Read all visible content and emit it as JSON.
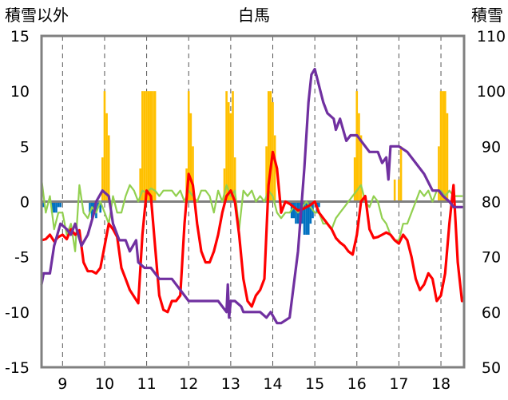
{
  "chart_data": {
    "type": "line",
    "title": "白馬",
    "ylabel_left": "積雪以外",
    "ylabel_right": "積雪",
    "x_ticks": [
      "9",
      "10",
      "11",
      "12",
      "13",
      "14",
      "15",
      "16",
      "17",
      "18"
    ],
    "xlim": [
      8.5,
      18.55
    ],
    "ylim_left": [
      -15,
      15
    ],
    "ylim_right": [
      50,
      110
    ],
    "y_ticks_left": [
      "15",
      "10",
      "5",
      "0",
      "-5",
      "-10",
      "-15"
    ],
    "y_ticks_right": [
      "110",
      "100",
      "90",
      "80",
      "70",
      "60",
      "50"
    ],
    "grid": "dashed vertical",
    "colors": {
      "temperature": "#ff0000",
      "snow_depth": "#7030a0",
      "wind": "#92d050",
      "precip_positive": "#ffc000",
      "precip_negative": "#0070c0",
      "zero_line": "#7f7f7f",
      "grid": "#555555",
      "frame": "#808080"
    },
    "series": [
      {
        "name": "temperature",
        "axis": "left",
        "x": [
          8.5,
          8.6,
          8.7,
          8.8,
          8.9,
          9.0,
          9.1,
          9.2,
          9.3,
          9.4,
          9.5,
          9.6,
          9.7,
          9.8,
          9.9,
          10.0,
          10.1,
          10.2,
          10.3,
          10.4,
          10.5,
          10.6,
          10.7,
          10.8,
          10.9,
          11.0,
          11.1,
          11.2,
          11.3,
          11.4,
          11.5,
          11.6,
          11.7,
          11.8,
          11.9,
          12.0,
          12.1,
          12.2,
          12.3,
          12.4,
          12.5,
          12.6,
          12.7,
          12.8,
          12.9,
          13.0,
          13.1,
          13.2,
          13.3,
          13.4,
          13.5,
          13.6,
          13.7,
          13.8,
          13.9,
          14.0,
          14.1,
          14.2,
          14.3,
          14.4,
          14.5,
          14.6,
          14.7,
          14.8,
          14.9,
          15.0,
          15.1,
          15.2,
          15.3,
          15.4,
          15.5,
          15.6,
          15.7,
          15.8,
          15.9,
          16.0,
          16.1,
          16.2,
          16.3,
          16.4,
          16.5,
          16.6,
          16.7,
          16.8,
          16.9,
          17.0,
          17.1,
          17.2,
          17.3,
          17.4,
          17.5,
          17.6,
          17.7,
          17.8,
          17.9,
          18.0,
          18.1,
          18.2,
          18.3,
          18.4,
          18.5
        ],
        "values": [
          -3.5,
          -3.4,
          -3.0,
          -3.6,
          -3.2,
          -3.0,
          -3.4,
          -2.5,
          -3.0,
          -2.6,
          -5.5,
          -6.3,
          -6.3,
          -6.5,
          -6.0,
          -4.0,
          -2.0,
          -2.5,
          -3.2,
          -6.0,
          -7.0,
          -8.0,
          -8.6,
          -9.2,
          -3.0,
          1.0,
          0.5,
          -4.0,
          -8.5,
          -9.8,
          -10.0,
          -9.0,
          -9.0,
          -8.5,
          -2.0,
          2.5,
          1.5,
          -2.0,
          -4.5,
          -5.5,
          -5.5,
          -4.5,
          -3.0,
          -1.0,
          0.5,
          1.0,
          0.0,
          -3.0,
          -7.0,
          -9.0,
          -9.5,
          -8.5,
          -8.0,
          -7.0,
          1.5,
          4.5,
          3.0,
          -1.0,
          0.0,
          -0.2,
          -0.5,
          -0.8,
          -0.7,
          -0.5,
          -0.3,
          0.0,
          -1.0,
          -1.5,
          -2.0,
          -2.5,
          -3.3,
          -3.7,
          -4.0,
          -4.5,
          -4.8,
          -3.0,
          0.0,
          0.5,
          -2.5,
          -3.3,
          -3.2,
          -3.0,
          -2.8,
          -3.0,
          -3.5,
          -3.8,
          -3.0,
          -3.5,
          -5.0,
          -7.0,
          -8.0,
          -7.5,
          -6.5,
          -7.0,
          -9.0,
          -8.5,
          -6.5,
          -2.0,
          1.5,
          -5.5,
          -9.0
        ]
      },
      {
        "name": "snow_depth",
        "axis": "right",
        "x": [
          8.5,
          8.55,
          8.7,
          8.8,
          8.95,
          9.1,
          9.2,
          9.3,
          9.45,
          9.6,
          9.75,
          9.8,
          9.95,
          10.1,
          10.2,
          10.35,
          10.5,
          10.6,
          10.75,
          10.8,
          10.95,
          11.1,
          11.3,
          11.6,
          11.9,
          12.0,
          12.1,
          12.3,
          12.55,
          12.7,
          12.9,
          12.93,
          12.96,
          13.0,
          13.1,
          13.25,
          13.3,
          13.5,
          13.7,
          13.85,
          13.95,
          14.1,
          14.2,
          14.4,
          14.6,
          14.75,
          14.85,
          14.92,
          15.0,
          15.1,
          15.2,
          15.3,
          15.45,
          15.5,
          15.6,
          15.75,
          15.85,
          16.0,
          16.2,
          16.3,
          16.5,
          16.6,
          16.7,
          16.75,
          16.8,
          17.0,
          17.2,
          17.4,
          17.6,
          17.8,
          17.95,
          18.05,
          18.2,
          18.3,
          18.5
        ],
        "values": [
          65,
          67,
          67,
          72,
          76,
          75,
          74,
          76,
          72,
          74,
          78,
          80,
          82,
          81,
          76,
          73,
          73,
          71,
          73,
          69,
          68,
          68,
          66,
          66,
          63,
          62,
          62,
          62,
          62,
          62,
          60,
          65,
          59,
          62,
          62,
          61,
          60,
          60,
          60,
          59,
          60,
          58,
          58,
          59,
          71,
          86,
          98,
          103,
          104,
          101,
          98,
          96,
          95,
          93,
          95,
          91,
          92,
          92,
          90,
          89,
          89,
          87,
          88,
          84,
          90,
          90,
          89,
          87,
          85,
          82,
          82,
          81,
          80,
          79,
          79
        ]
      },
      {
        "name": "wind",
        "axis": "left",
        "x": [
          8.5,
          8.6,
          8.7,
          8.8,
          8.9,
          9.0,
          9.1,
          9.2,
          9.3,
          9.4,
          9.5,
          9.6,
          9.7,
          9.8,
          9.9,
          10.0,
          10.1,
          10.2,
          10.3,
          10.4,
          10.5,
          10.6,
          10.7,
          10.8,
          10.9,
          11.0,
          11.1,
          11.2,
          11.3,
          11.4,
          11.5,
          11.6,
          11.7,
          11.8,
          11.9,
          12.0,
          12.1,
          12.2,
          12.3,
          12.4,
          12.5,
          12.6,
          12.7,
          12.8,
          12.9,
          13.0,
          13.1,
          13.2,
          13.3,
          13.4,
          13.5,
          13.6,
          13.7,
          13.8,
          13.9,
          14.0,
          14.1,
          14.2,
          14.3,
          14.4,
          14.5,
          14.6,
          14.7,
          14.8,
          14.9,
          15.0,
          15.1,
          15.2,
          15.3,
          15.4,
          15.5,
          15.6,
          15.7,
          15.8,
          15.9,
          16.0,
          16.1,
          16.2,
          16.3,
          16.4,
          16.5,
          16.6,
          16.7,
          16.8,
          16.9,
          17.0,
          17.1,
          17.2,
          17.3,
          17.4,
          17.5,
          17.6,
          17.7,
          17.8,
          17.9,
          18.0,
          18.1,
          18.2,
          18.3,
          18.4,
          18.5
        ],
        "values": [
          2.0,
          -1.0,
          0.5,
          -2.5,
          -1.0,
          -1.0,
          -3.0,
          -2.0,
          -4.5,
          1.5,
          -1.0,
          -1.5,
          -0.5,
          -1.0,
          0.0,
          -1.0,
          -2.0,
          0.5,
          -1.0,
          -1.0,
          0.5,
          1.5,
          1.0,
          0.0,
          1.0,
          0.8,
          1.2,
          1.0,
          0.5,
          1.0,
          1.0,
          1.0,
          0.5,
          1.0,
          0.0,
          1.0,
          0.5,
          0.0,
          1.0,
          1.0,
          0.5,
          -1.0,
          1.0,
          0.0,
          1.5,
          0.5,
          1.0,
          -2.5,
          1.0,
          0.5,
          1.0,
          0.0,
          0.5,
          0.0,
          1.0,
          0.5,
          -1.0,
          -1.5,
          -1.0,
          -1.0,
          -0.5,
          -1.0,
          -0.5,
          0.0,
          -0.5,
          -1.0,
          -1.0,
          -2.0,
          -2.0,
          -2.5,
          -1.5,
          -1.0,
          -0.5,
          0.0,
          0.5,
          1.0,
          1.5,
          0.0,
          -0.5,
          0.5,
          0.0,
          -1.5,
          -2.0,
          -3.0,
          -3.5,
          -3.5,
          -2.0,
          -2.0,
          -1.0,
          0.0,
          1.0,
          0.5,
          1.0,
          0.0,
          1.0,
          1.0,
          0.5,
          1.0,
          0.5,
          0.5,
          0.5
        ]
      },
      {
        "name": "precipitation_positive",
        "axis": "left",
        "type": "bar",
        "x": [
          9.95,
          10.0,
          10.05,
          10.1,
          10.85,
          10.9,
          10.95,
          11.0,
          11.05,
          11.1,
          11.15,
          11.2,
          11.95,
          12.0,
          12.05,
          12.1,
          12.85,
          12.9,
          12.95,
          13.0,
          13.05,
          13.1,
          13.85,
          13.9,
          13.95,
          14.0,
          14.05,
          15.95,
          16.0,
          16.05,
          16.1,
          16.9,
          17.0,
          17.05,
          17.95,
          18.0,
          18.05,
          18.1,
          18.15
        ],
        "values": [
          4.0,
          10.0,
          8.0,
          6.0,
          3.0,
          10.0,
          10.0,
          10.0,
          10.0,
          10.0,
          10.0,
          10.0,
          3.0,
          10.0,
          8.0,
          5.0,
          3.0,
          10.0,
          9.0,
          8.0,
          10.0,
          4.0,
          5.0,
          10.0,
          10.0,
          9.0,
          6.0,
          4.0,
          10.0,
          8.0,
          6.0,
          2.0,
          2.0,
          5.0,
          5.0,
          10.0,
          10.0,
          10.0,
          8.0
        ]
      },
      {
        "name": "precipitation_negative",
        "axis": "left",
        "type": "bar",
        "x": [
          8.55,
          8.75,
          8.8,
          8.85,
          8.9,
          8.95,
          9.65,
          9.7,
          9.75,
          9.8,
          9.85,
          9.9,
          14.45,
          14.5,
          14.55,
          14.6,
          14.65,
          14.7,
          14.75,
          14.8,
          14.85,
          14.9,
          14.95,
          15.05,
          15.1
        ],
        "values": [
          -0.5,
          -1.0,
          -1.0,
          -1.0,
          -0.5,
          -0.5,
          -1.0,
          -1.5,
          -1.0,
          -1.5,
          -0.5,
          -1.0,
          -1.5,
          -1.5,
          -2.0,
          -2.0,
          -2.0,
          -2.0,
          -3.0,
          -3.0,
          -3.0,
          -2.0,
          -1.5,
          -1.0,
          -0.5
        ]
      }
    ]
  }
}
